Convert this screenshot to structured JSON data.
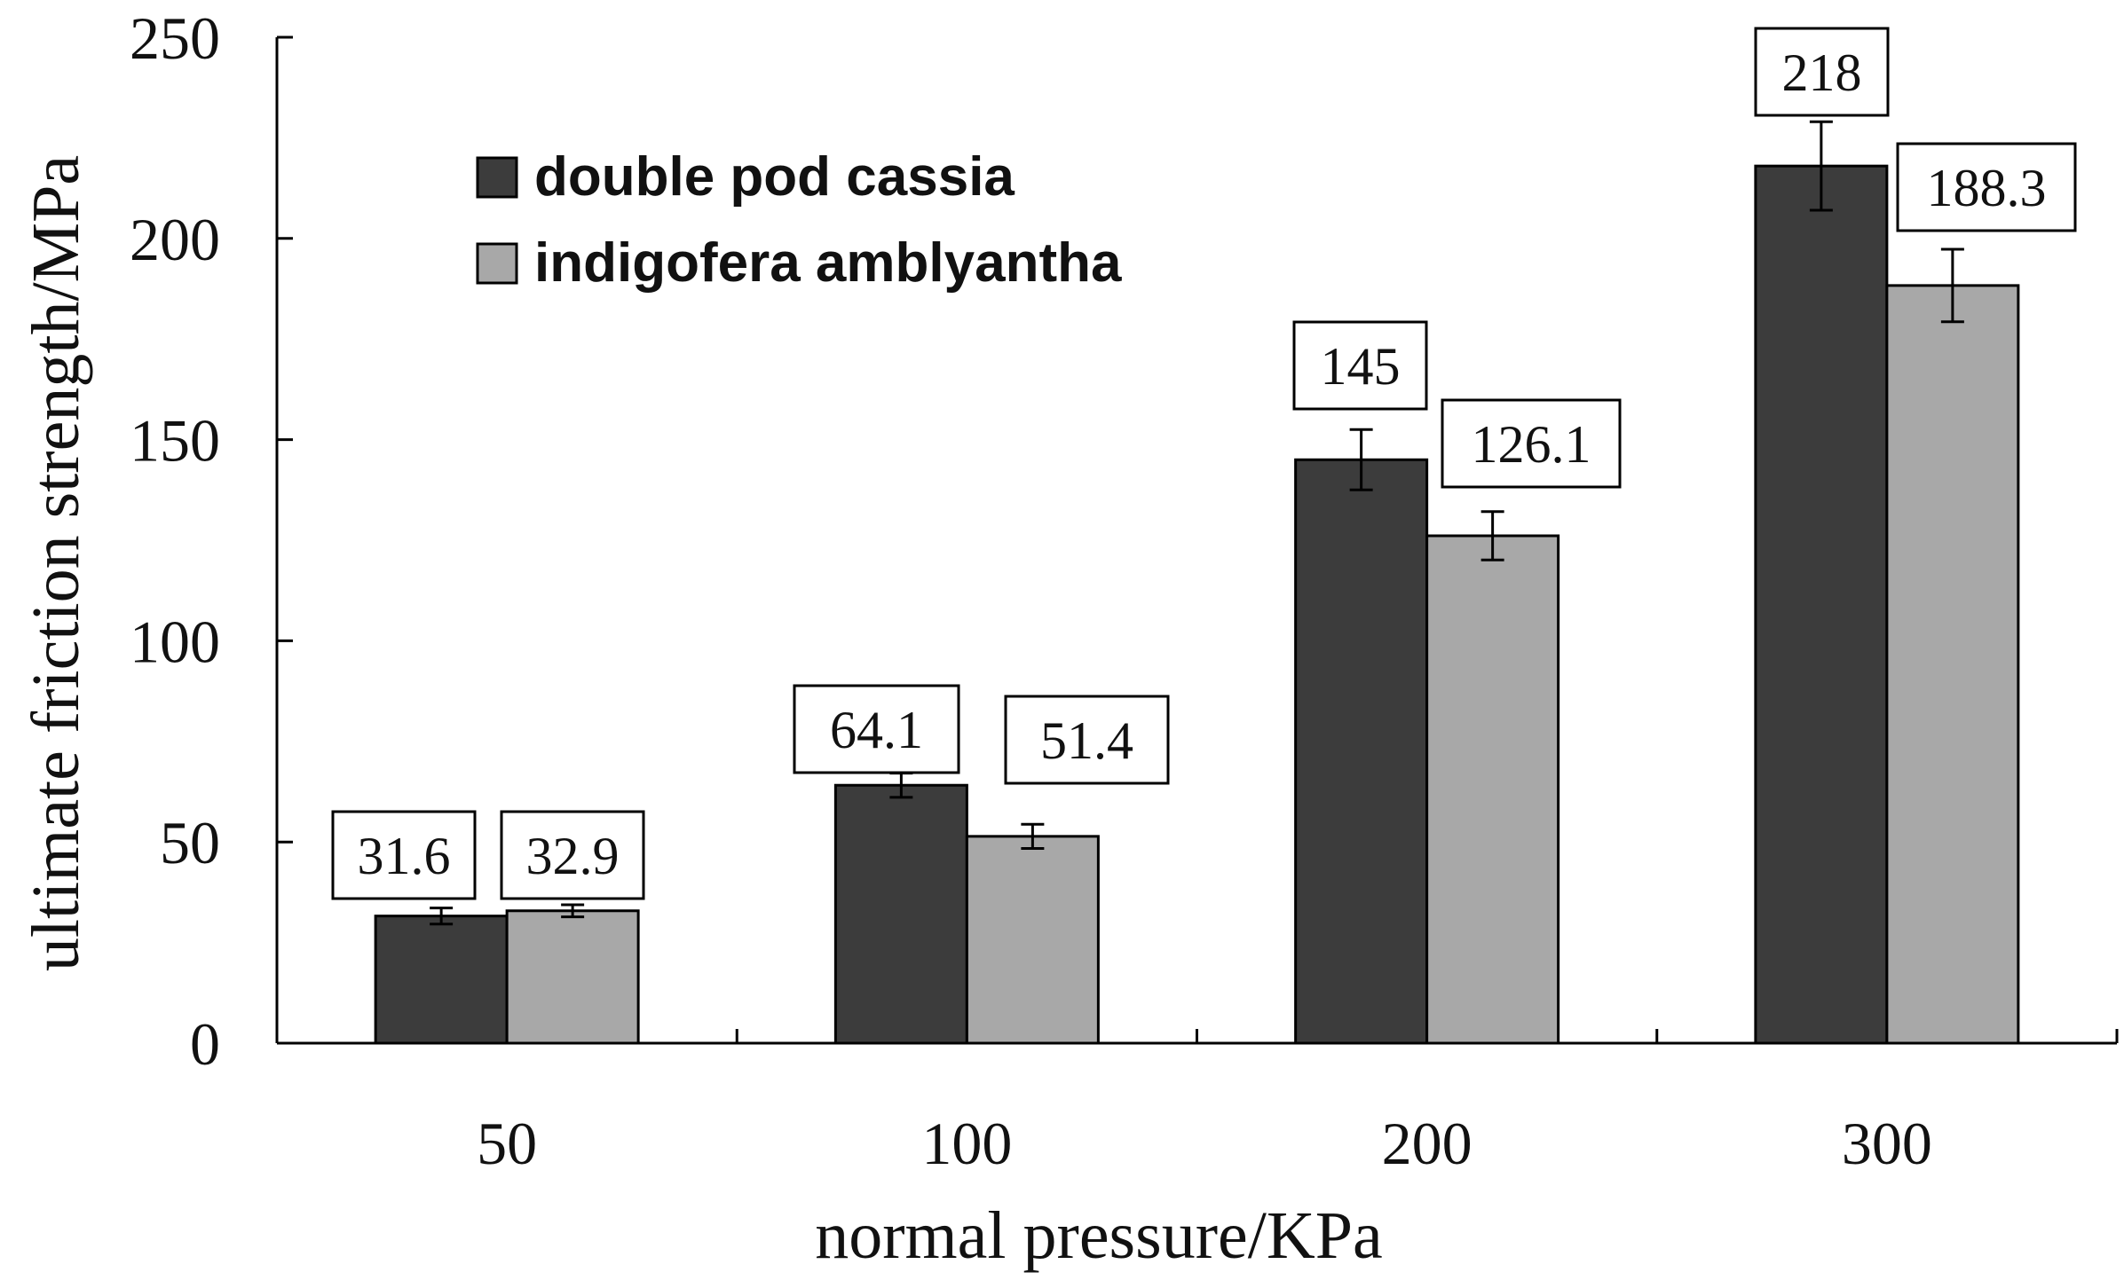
{
  "chart_data": {
    "type": "bar",
    "title": "",
    "xlabel": "normal pressure/KPa",
    "ylabel": "ultimate friction strength/MPa",
    "ylim": [
      0,
      250
    ],
    "yticks": [
      0,
      50,
      100,
      150,
      200,
      250
    ],
    "categories": [
      "50",
      "100",
      "200",
      "300"
    ],
    "grid": false,
    "legend_position": "top-left",
    "series": [
      {
        "name": "double pod cassia",
        "color": "#3c3c3c",
        "values": [
          31.6,
          64.1,
          145,
          218
        ],
        "labels": [
          "31.6",
          "64.1",
          "145",
          "218"
        ],
        "errors": [
          2,
          3,
          7.5,
          11
        ]
      },
      {
        "name": "indigofera amblyantha",
        "color": "#a8a8a8",
        "values": [
          32.9,
          51.4,
          126.1,
          188.3
        ],
        "labels": [
          "32.9",
          "51.4",
          "126.1",
          "188.3"
        ],
        "errors": [
          1.5,
          3,
          6,
          9
        ]
      }
    ]
  }
}
